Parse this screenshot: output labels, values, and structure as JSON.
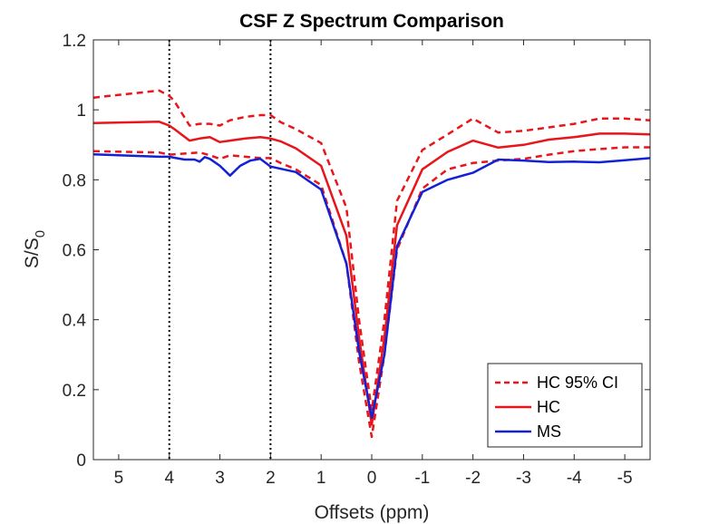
{
  "chart_data": {
    "type": "line",
    "title": "CSF Z Spectrum Comparison",
    "xlabel": "Offsets (ppm)",
    "ylabel_main": "S/S",
    "ylabel_sub": "0",
    "xlim": [
      5.5,
      -5.5
    ],
    "ylim": [
      0,
      1.2
    ],
    "xticks": [
      5,
      4,
      3,
      2,
      1,
      0,
      -1,
      -2,
      -3,
      -4,
      -5
    ],
    "xtick_labels": [
      "5",
      "4",
      "3",
      "2",
      "1",
      "0",
      "-1",
      "-2",
      "-3",
      "-4",
      "-5"
    ],
    "yticks": [
      0,
      0.2,
      0.4,
      0.6,
      0.8,
      1,
      1.2
    ],
    "ytick_labels": [
      "0",
      "0.2",
      "0.4",
      "0.6",
      "0.8",
      "1",
      "1.2"
    ],
    "vlines": [
      4,
      2
    ],
    "series": [
      {
        "name": "HC 95% CI upper",
        "legend": "HC 95% CI",
        "color": "#e8151b",
        "style": "dashed",
        "x": [
          5.5,
          4.2,
          4.0,
          3.9,
          3.6,
          3.4,
          3.2,
          3.0,
          2.8,
          2.5,
          2.2,
          2.0,
          1.8,
          1.5,
          1.0,
          0.5,
          0.25,
          0.0,
          -0.25,
          -0.5,
          -1.0,
          -1.5,
          -2.0,
          -2.5,
          -3.0,
          -3.5,
          -4.0,
          -4.5,
          -5.0,
          -5.5
        ],
        "values": [
          1.035,
          1.055,
          1.04,
          1.025,
          0.955,
          0.96,
          0.96,
          0.955,
          0.97,
          0.98,
          0.985,
          0.985,
          0.965,
          0.945,
          0.905,
          0.72,
          0.4,
          0.14,
          0.4,
          0.74,
          0.885,
          0.93,
          0.975,
          0.935,
          0.94,
          0.95,
          0.96,
          0.975,
          0.975,
          0.97
        ]
      },
      {
        "name": "HC",
        "legend": "HC",
        "color": "#e8151b",
        "style": "solid",
        "x": [
          5.5,
          4.2,
          4.0,
          3.9,
          3.6,
          3.4,
          3.2,
          3.0,
          2.8,
          2.5,
          2.2,
          2.0,
          1.8,
          1.5,
          1.0,
          0.5,
          0.25,
          0.0,
          -0.25,
          -0.5,
          -1.0,
          -1.5,
          -2.0,
          -2.5,
          -3.0,
          -3.5,
          -4.0,
          -4.5,
          -5.0,
          -5.5
        ],
        "values": [
          0.962,
          0.966,
          0.955,
          0.945,
          0.912,
          0.918,
          0.922,
          0.908,
          0.912,
          0.918,
          0.922,
          0.918,
          0.91,
          0.89,
          0.84,
          0.64,
          0.35,
          0.1,
          0.35,
          0.67,
          0.83,
          0.88,
          0.912,
          0.892,
          0.9,
          0.915,
          0.922,
          0.932,
          0.932,
          0.93
        ]
      },
      {
        "name": "HC 95% CI lower",
        "legend": "",
        "color": "#e8151b",
        "style": "dashed",
        "x": [
          5.5,
          4.2,
          4.0,
          3.9,
          3.6,
          3.4,
          3.2,
          3.0,
          2.8,
          2.5,
          2.2,
          2.0,
          1.8,
          1.5,
          1.0,
          0.5,
          0.25,
          0.0,
          -0.25,
          -0.5,
          -1.0,
          -1.5,
          -2.0,
          -2.5,
          -3.0,
          -3.5,
          -4.0,
          -4.5,
          -5.0,
          -5.5
        ],
        "values": [
          0.882,
          0.878,
          0.872,
          0.873,
          0.876,
          0.878,
          0.87,
          0.86,
          0.87,
          0.866,
          0.862,
          0.862,
          0.848,
          0.83,
          0.785,
          0.56,
          0.28,
          0.065,
          0.3,
          0.6,
          0.775,
          0.83,
          0.848,
          0.855,
          0.86,
          0.872,
          0.882,
          0.888,
          0.893,
          0.893
        ]
      },
      {
        "name": "MS",
        "legend": "MS",
        "color": "#1221d6",
        "style": "solid",
        "x": [
          5.5,
          4.2,
          4.0,
          3.9,
          3.7,
          3.5,
          3.4,
          3.3,
          3.2,
          3.0,
          2.8,
          2.6,
          2.4,
          2.2,
          2.0,
          1.5,
          1.0,
          0.5,
          0.25,
          0.0,
          -0.25,
          -0.5,
          -1.0,
          -1.5,
          -2.0,
          -2.5,
          -3.0,
          -3.5,
          -4.0,
          -4.5,
          -5.0,
          -5.5
        ],
        "values": [
          0.873,
          0.866,
          0.866,
          0.863,
          0.858,
          0.858,
          0.852,
          0.865,
          0.86,
          0.84,
          0.812,
          0.84,
          0.855,
          0.86,
          0.838,
          0.822,
          0.772,
          0.56,
          0.31,
          0.12,
          0.3,
          0.61,
          0.765,
          0.8,
          0.82,
          0.858,
          0.855,
          0.851,
          0.852,
          0.85,
          0.856,
          0.862
        ]
      }
    ],
    "legend": {
      "position": "bottom-right",
      "entries": [
        {
          "label": "HC 95% CI",
          "color": "#e8151b",
          "style": "dashed"
        },
        {
          "label": "HC",
          "color": "#e8151b",
          "style": "solid"
        },
        {
          "label": "MS",
          "color": "#1221d6",
          "style": "solid"
        }
      ]
    }
  }
}
